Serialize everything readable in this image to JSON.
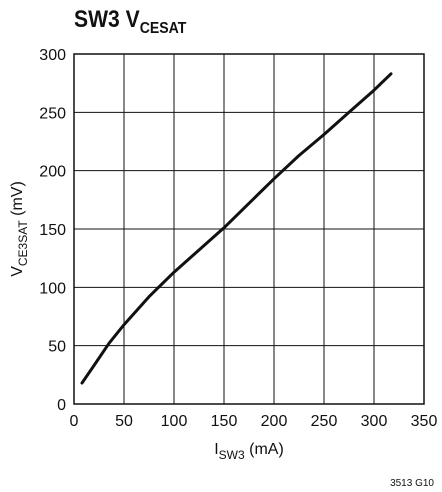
{
  "chart_data": {
    "type": "line",
    "title_main": "SW3 V",
    "title_sub": "CESAT",
    "xlabel_main": "I",
    "xlabel_sub": "SW3",
    "xlabel_unit": " (mA)",
    "ylabel_main": "V",
    "ylabel_sub": "CE3SAT",
    "ylabel_unit": " (mV)",
    "xlim": [
      0,
      350
    ],
    "ylim": [
      0,
      300
    ],
    "xticks": [
      0,
      50,
      100,
      150,
      200,
      250,
      300,
      350
    ],
    "yticks": [
      0,
      50,
      100,
      150,
      200,
      250,
      300
    ],
    "grid": true,
    "series": [
      {
        "x": [
          8,
          20,
          35,
          50,
          75,
          100,
          125,
          150,
          175,
          200,
          225,
          250,
          275,
          300,
          317
        ],
        "y": [
          18,
          33,
          52,
          68,
          92,
          113,
          132,
          151,
          172,
          193,
          213,
          231,
          250,
          269,
          283
        ]
      }
    ],
    "footnote": "3513 G10"
  }
}
